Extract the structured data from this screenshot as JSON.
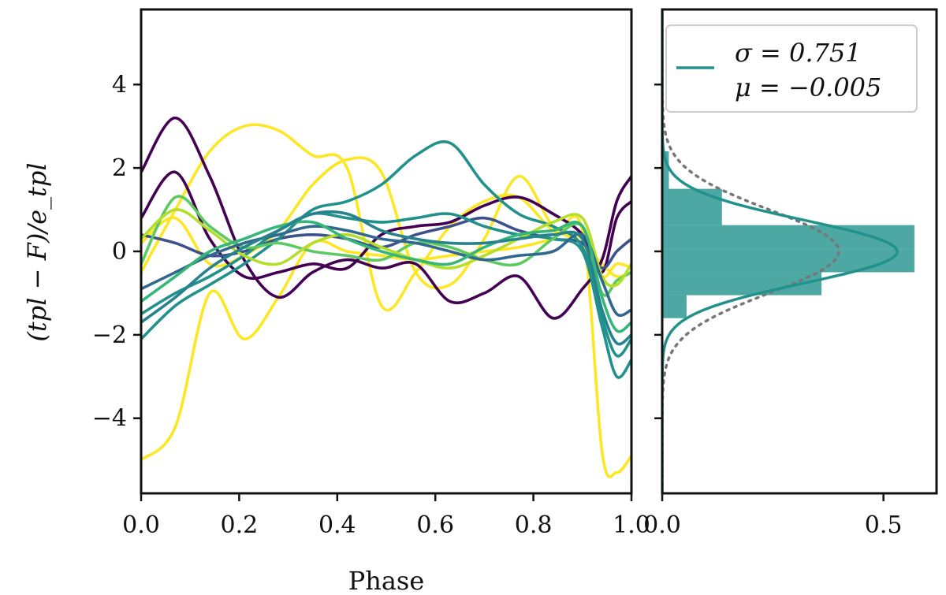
{
  "chart_data": [
    {
      "type": "line",
      "title": "",
      "xlabel": "Phase",
      "ylabel": "(tpl − F)/e_tpl",
      "xlim": [
        0.0,
        1.0
      ],
      "ylim": [
        -5.8,
        5.8
      ],
      "x_ticks": [
        0.0,
        0.2,
        0.4,
        0.6,
        0.8,
        1.0
      ],
      "x_tick_labels": [
        "0.0",
        "0.2",
        "0.4",
        "0.6",
        "0.8",
        "1.0"
      ],
      "y_ticks": [
        -4,
        -2,
        0,
        2,
        4
      ],
      "y_tick_labels": [
        "−4",
        "−2",
        "0",
        "2",
        "4"
      ],
      "grid": false,
      "colormap": "viridis",
      "phase_x": [
        0.0,
        0.07,
        0.14,
        0.21,
        0.28,
        0.35,
        0.42,
        0.49,
        0.56,
        0.63,
        0.7,
        0.77,
        0.84,
        0.9,
        0.94,
        0.97,
        1.0
      ],
      "series": [
        {
          "color": "#fde725",
          "values": [
            -5.0,
            -4.2,
            -1.0,
            -2.1,
            -1.1,
            0.2,
            0.0,
            -0.1,
            -0.2,
            -0.1,
            0.0,
            0.1,
            0.3,
            0.5,
            -4.8,
            -5.3,
            -4.9
          ]
        },
        {
          "color": "#fde725",
          "values": [
            -0.5,
            1.0,
            2.4,
            3.0,
            2.9,
            2.3,
            2.0,
            -1.3,
            -0.5,
            0.6,
            1.2,
            1.3,
            0.5,
            0.3,
            -0.6,
            -0.3,
            -0.4
          ]
        },
        {
          "color": "#fde725",
          "values": [
            0.2,
            0.8,
            -0.3,
            -0.1,
            0.5,
            1.6,
            2.2,
            1.9,
            -0.5,
            -0.8,
            0.3,
            1.8,
            0.6,
            0.2,
            -0.3,
            -0.6,
            -0.5
          ]
        },
        {
          "color": "#440154",
          "values": [
            1.9,
            3.2,
            1.8,
            -0.2,
            -1.1,
            -0.5,
            -0.2,
            -0.4,
            -0.3,
            -1.2,
            -1.0,
            -0.6,
            -1.6,
            -0.9,
            -0.2,
            1.2,
            1.8
          ]
        },
        {
          "color": "#440154",
          "values": [
            0.8,
            1.9,
            0.3,
            -0.6,
            -0.5,
            -0.3,
            -0.4,
            0.4,
            0.6,
            0.7,
            1.1,
            1.3,
            0.9,
            0.4,
            -0.5,
            0.8,
            1.2
          ]
        },
        {
          "color": "#3b528b",
          "values": [
            0.4,
            0.2,
            -0.1,
            0.0,
            0.3,
            0.4,
            0.3,
            0.1,
            0.4,
            0.6,
            0.8,
            0.5,
            0.3,
            0.2,
            -0.4,
            0.0,
            0.3
          ]
        },
        {
          "color": "#21918c",
          "values": [
            -2.1,
            -1.3,
            -0.8,
            -0.3,
            0.3,
            1.0,
            1.2,
            1.6,
            2.3,
            2.6,
            1.6,
            0.9,
            0.6,
            0.1,
            -1.6,
            -2.5,
            -2.1
          ]
        },
        {
          "color": "#21918c",
          "values": [
            -1.5,
            -1.0,
            -0.6,
            -0.1,
            0.5,
            0.9,
            0.8,
            0.7,
            0.8,
            0.9,
            0.6,
            0.4,
            0.3,
            0.0,
            -1.8,
            -3.0,
            -2.6
          ]
        },
        {
          "color": "#5ec962",
          "values": [
            -0.3,
            1.3,
            0.6,
            0.1,
            0.2,
            0.0,
            -0.1,
            -0.2,
            0.2,
            0.1,
            -0.2,
            -0.3,
            0.3,
            0.6,
            -1.0,
            -0.7,
            -0.5
          ]
        },
        {
          "color": "#b5de2b",
          "values": [
            0.3,
            1.0,
            0.5,
            -0.1,
            -0.3,
            0.2,
            0.4,
            0.1,
            -0.2,
            -0.4,
            -0.1,
            0.3,
            0.7,
            0.8,
            -0.6,
            -0.8,
            -0.3
          ]
        },
        {
          "color": "#31688e",
          "values": [
            -0.9,
            -0.5,
            -0.1,
            0.2,
            0.4,
            0.6,
            0.5,
            0.3,
            0.2,
            0.0,
            -0.2,
            -0.1,
            0.0,
            0.4,
            -0.7,
            -1.5,
            -1.4
          ]
        },
        {
          "color": "#35b779",
          "values": [
            -1.2,
            -0.6,
            0.0,
            0.3,
            0.6,
            0.7,
            0.3,
            0.0,
            -0.2,
            -0.3,
            0.1,
            0.4,
            0.5,
            0.6,
            -1.1,
            -1.9,
            -1.7
          ]
        },
        {
          "color": "#26828e",
          "values": [
            -1.7,
            -1.1,
            -0.4,
            0.1,
            0.5,
            0.9,
            0.9,
            0.5,
            0.3,
            0.2,
            0.2,
            0.3,
            0.4,
            0.3,
            -1.4,
            -2.2,
            -2.0
          ]
        }
      ]
    },
    {
      "type": "histogram",
      "title": "",
      "xlabel": "",
      "ylabel": "",
      "orientation": "horizontal",
      "xlim": [
        0.0,
        0.62
      ],
      "ylim": [
        -5.8,
        5.8
      ],
      "x_ticks": [
        0.0,
        0.5
      ],
      "x_tick_labels": [
        "0.0",
        "0.5"
      ],
      "bar_color": "#21918c",
      "bins": [
        {
          "y0": -1.6,
          "y1": -1.05,
          "density": 0.055
        },
        {
          "y0": -1.05,
          "y1": -0.5,
          "density": 0.36
        },
        {
          "y0": -0.5,
          "y1": 0.07,
          "density": 0.57
        },
        {
          "y0": 0.07,
          "y1": 0.63,
          "density": 0.57
        },
        {
          "y0": 0.63,
          "y1": 1.5,
          "density": 0.135
        },
        {
          "y0": 1.5,
          "y1": 2.4,
          "density": 0.015
        }
      ],
      "fit_curve": {
        "sigma": 0.751,
        "mu": -0.005,
        "color": "#21918c",
        "style": "solid"
      },
      "reference_curve": {
        "sigma": 1.0,
        "mu": 0.0,
        "color": "#777777",
        "style": "dotted"
      },
      "legend": {
        "placement": "top-right",
        "line1": "σ = 0.751",
        "line2": "μ = −0.005"
      }
    }
  ]
}
